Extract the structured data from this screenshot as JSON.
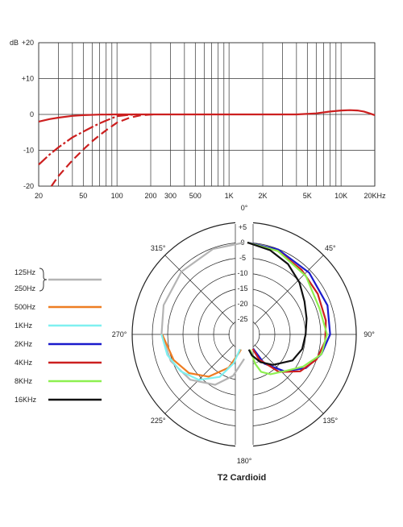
{
  "chart_data": [
    {
      "type": "line",
      "title": "",
      "ylabel": "dB",
      "xscale": "log",
      "xlim": [
        20,
        20000
      ],
      "ylim": [
        -20,
        20
      ],
      "grid": true,
      "y_ticks": [
        {
          "value": 20,
          "label": "+20"
        },
        {
          "value": 10,
          "label": "+10"
        },
        {
          "value": 0,
          "label": "0"
        },
        {
          "value": -10,
          "label": "-10"
        },
        {
          "value": -20,
          "label": "-20"
        }
      ],
      "x_ticks": [
        {
          "value": 20,
          "label": "20"
        },
        {
          "value": 50,
          "label": "50"
        },
        {
          "value": 100,
          "label": "100"
        },
        {
          "value": 200,
          "label": "200"
        },
        {
          "value": 300,
          "label": "300"
        },
        {
          "value": 500,
          "label": "500"
        },
        {
          "value": 1000,
          "label": "1K"
        },
        {
          "value": 2000,
          "label": "2K"
        },
        {
          "value": 5000,
          "label": "5K"
        },
        {
          "value": 10000,
          "label": "10K"
        },
        {
          "value": 20000,
          "label": "20KHz"
        }
      ],
      "series": [
        {
          "style": "solid",
          "color": "#cc1f1f",
          "points": [
            [
              20,
              -2
            ],
            [
              25,
              -1.3
            ],
            [
              30,
              -0.9
            ],
            [
              40,
              -0.4
            ],
            [
              50,
              -0.2
            ],
            [
              70,
              -0.05
            ],
            [
              100,
              0
            ],
            [
              2000,
              0
            ],
            [
              4000,
              0
            ],
            [
              6000,
              0.3
            ],
            [
              8000,
              0.8
            ],
            [
              10000,
              1.1
            ],
            [
              12000,
              1.2
            ],
            [
              14000,
              1.1
            ],
            [
              16000,
              0.8
            ],
            [
              18000,
              0.3
            ],
            [
              20000,
              -0.2
            ]
          ]
        },
        {
          "style": "dash-dot",
          "color": "#cc1f1f",
          "points": [
            [
              20,
              -14
            ],
            [
              25,
              -11.2
            ],
            [
              30,
              -9.2
            ],
            [
              40,
              -6.4
            ],
            [
              50,
              -4.8
            ],
            [
              60,
              -3.5
            ],
            [
              70,
              -2.5
            ],
            [
              80,
              -1.7
            ],
            [
              100,
              -0.5
            ],
            [
              130,
              -0.1
            ],
            [
              150,
              0
            ]
          ]
        },
        {
          "style": "dashed",
          "color": "#cc1f1f",
          "points": [
            [
              26,
              -20
            ],
            [
              30,
              -17.2
            ],
            [
              40,
              -12.8
            ],
            [
              50,
              -9.8
            ],
            [
              60,
              -7.5
            ],
            [
              70,
              -5.8
            ],
            [
              80,
              -4.4
            ],
            [
              100,
              -2.3
            ],
            [
              130,
              -0.9
            ],
            [
              160,
              -0.3
            ],
            [
              200,
              -0.05
            ],
            [
              220,
              0
            ]
          ]
        }
      ]
    },
    {
      "type": "polar",
      "title": "T2 Cardioid",
      "r_ticks": [
        "+5",
        "0",
        "-5",
        "-10",
        "-15",
        "-20",
        "-25"
      ],
      "angle_labels": [
        {
          "angle": 0,
          "label": "0°"
        },
        {
          "angle": 45,
          "label": "45°"
        },
        {
          "angle": 90,
          "label": "90°"
        },
        {
          "angle": 135,
          "label": "135°"
        },
        {
          "angle": 180,
          "label": "180°"
        },
        {
          "angle": 225,
          "label": "225°"
        },
        {
          "angle": 270,
          "label": "270°"
        },
        {
          "angle": 315,
          "label": "315°"
        }
      ],
      "legend": [
        {
          "label": "125Hz",
          "color": "#b4b4b4"
        },
        {
          "label": "250Hz",
          "color": "#b4b4b4"
        },
        {
          "label": "500Hz",
          "color": "#ee7d22"
        },
        {
          "label": "1KHz",
          "color": "#7ff0f0"
        },
        {
          "label": "2KHz",
          "color": "#1a1acc"
        },
        {
          "label": "4KHz",
          "color": "#cc1f1f"
        },
        {
          "label": "8KHz",
          "color": "#8df050"
        },
        {
          "label": "16KHz",
          "color": "#111111"
        }
      ],
      "series": [
        {
          "name": "125Hz / 250Hz",
          "side": "left",
          "color": "#b4b4b4",
          "points": [
            [
              0,
              0
            ],
            [
              20,
              -0.3
            ],
            [
              45,
              -1
            ],
            [
              70,
              -2
            ],
            [
              90,
              -3
            ],
            [
              110,
              -4.5
            ],
            [
              130,
              -7
            ],
            [
              150,
              -11
            ],
            [
              165,
              -16
            ],
            [
              180,
              -22
            ]
          ]
        },
        {
          "name": "500Hz",
          "side": "left",
          "color": "#ee7d22",
          "points": [
            [
              90,
              -3.2
            ],
            [
              110,
              -5.5
            ],
            [
              125,
              -8
            ],
            [
              140,
              -12
            ],
            [
              155,
              -18
            ],
            [
              165,
              -24
            ],
            [
              168,
              -25
            ]
          ]
        },
        {
          "name": "1KHz",
          "side": "left",
          "color": "#7ff0f0",
          "points": [
            [
              90,
              -3
            ],
            [
              105,
              -4
            ],
            [
              120,
              -6
            ],
            [
              135,
              -9
            ],
            [
              150,
              -14
            ],
            [
              160,
              -20
            ],
            [
              164,
              -25
            ]
          ]
        },
        {
          "name": "2KHz",
          "side": "right",
          "color": "#1a1acc",
          "points": [
            [
              0,
              0
            ],
            [
              20,
              -0.5
            ],
            [
              45,
              -1.5
            ],
            [
              70,
              -2.2
            ],
            [
              90,
              -3
            ],
            [
              105,
              -5
            ],
            [
              120,
              -8
            ],
            [
              135,
              -13
            ],
            [
              150,
              -19
            ],
            [
              158,
              -25
            ]
          ]
        },
        {
          "name": "4KHz",
          "side": "right",
          "color": "#cc1f1f",
          "points": [
            [
              0,
              0
            ],
            [
              20,
              -1
            ],
            [
              40,
              -2.5
            ],
            [
              60,
              -3.5
            ],
            [
              80,
              -4
            ],
            [
              95,
              -4.5
            ],
            [
              110,
              -6
            ],
            [
              125,
              -9
            ],
            [
              140,
              -14
            ],
            [
              155,
              -21
            ],
            [
              160,
              -25
            ]
          ]
        },
        {
          "name": "8KHz",
          "side": "right",
          "color": "#8df050",
          "points": [
            [
              0,
              0
            ],
            [
              20,
              -1
            ],
            [
              45,
              -3
            ],
            [
              70,
              -5
            ],
            [
              90,
              -4
            ],
            [
              105,
              -5
            ],
            [
              120,
              -9
            ],
            [
              135,
              -13
            ],
            [
              150,
              -15
            ],
            [
              160,
              -17
            ],
            [
              165,
              -20
            ],
            [
              170,
              -25
            ]
          ]
        },
        {
          "name": "16KHz",
          "side": "right",
          "color": "#111111",
          "points": [
            [
              0,
              0
            ],
            [
              15,
              -1.5
            ],
            [
              30,
              -3.5
            ],
            [
              45,
              -6
            ],
            [
              60,
              -8.5
            ],
            [
              75,
              -10
            ],
            [
              90,
              -11
            ],
            [
              105,
              -11.5
            ],
            [
              120,
              -13
            ],
            [
              140,
              -17
            ],
            [
              155,
              -20
            ],
            [
              168,
              -23
            ],
            [
              175,
              -25
            ]
          ]
        }
      ]
    }
  ]
}
